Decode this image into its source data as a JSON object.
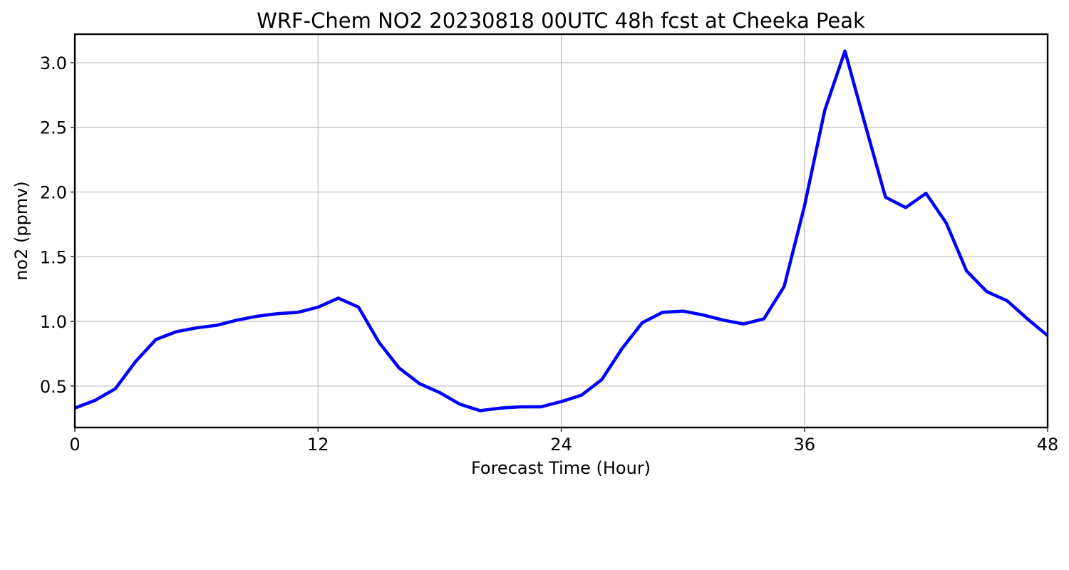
{
  "chart_data": {
    "type": "line",
    "title": "WRF-Chem NO2  20230818 00UTC 48h fcst at Cheeka Peak",
    "xlabel": "Forecast Time (Hour)",
    "ylabel": "no2  (ppmv)",
    "xlim": [
      0,
      48
    ],
    "ylim": [
      0.18,
      3.22
    ],
    "xticks": [
      0,
      12,
      24,
      36,
      48
    ],
    "yticks": [
      0.5,
      1.0,
      1.5,
      2.0,
      2.5,
      3.0
    ],
    "ytick_labels": [
      "0.5",
      "1.0",
      "1.5",
      "2.0",
      "2.5",
      "3.0"
    ],
    "xtick_labels": [
      "0",
      "12",
      "24",
      "36",
      "48"
    ],
    "grid": true,
    "line_color": "#0000ff",
    "series": [
      {
        "x": [
          0,
          1,
          2,
          3,
          4,
          5,
          6,
          7,
          8,
          9,
          10,
          11,
          12,
          13,
          14,
          15,
          16,
          17,
          18,
          19,
          20,
          21,
          22,
          23,
          24,
          25,
          26,
          27,
          28,
          29,
          30,
          31,
          32,
          33,
          34,
          35,
          36,
          37,
          38,
          39,
          40,
          41,
          42,
          43,
          44,
          45,
          46,
          47,
          48
        ],
        "values": [
          0.33,
          0.39,
          0.48,
          0.69,
          0.86,
          0.92,
          0.95,
          0.97,
          1.01,
          1.04,
          1.06,
          1.07,
          1.11,
          1.18,
          1.11,
          0.84,
          0.64,
          0.52,
          0.45,
          0.36,
          0.31,
          0.33,
          0.34,
          0.34,
          0.38,
          0.43,
          0.55,
          0.79,
          0.99,
          1.07,
          1.08,
          1.05,
          1.01,
          0.98,
          1.02,
          1.27,
          1.89,
          2.63,
          3.09,
          2.52,
          1.96,
          1.88,
          1.99,
          1.76,
          1.39,
          1.23,
          1.16,
          1.02,
          0.89
        ]
      }
    ]
  }
}
